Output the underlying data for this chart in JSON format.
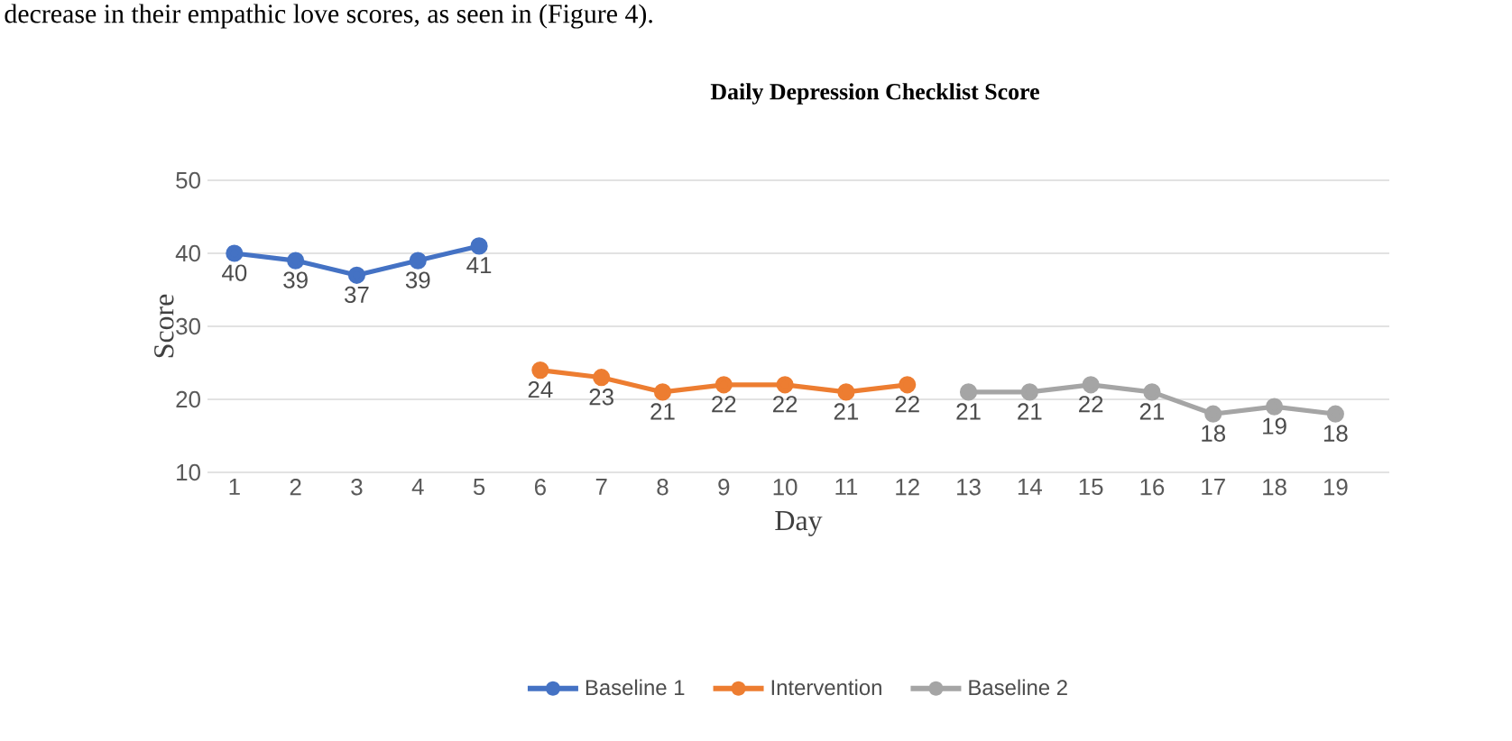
{
  "chart_data": {
    "type": "line",
    "title": "Daily Depression Checklist Score",
    "xlabel": "Day",
    "ylabel": "Score",
    "annotations": [
      "decrease in their empathic love scores, as seen in (Figure 4)."
    ],
    "categories": [
      "1",
      "2",
      "3",
      "4",
      "5",
      "6",
      "7",
      "8",
      "9",
      "10",
      "11",
      "12",
      "13",
      "14",
      "15",
      "16",
      "17",
      "18",
      "19"
    ],
    "series": [
      {
        "name": "Baseline 1",
        "color": "#4472c4",
        "values": [
          40,
          39,
          37,
          39,
          41,
          null,
          null,
          null,
          null,
          null,
          null,
          null,
          null,
          null,
          null,
          null,
          null,
          null,
          null
        ]
      },
      {
        "name": "Intervention",
        "color": "#ed7d31",
        "values": [
          null,
          null,
          null,
          null,
          null,
          24,
          23,
          21,
          22,
          22,
          21,
          22,
          null,
          null,
          null,
          null,
          null,
          null,
          null
        ]
      },
      {
        "name": "Baseline 2",
        "color": "#a5a5a5",
        "values": [
          null,
          null,
          null,
          null,
          null,
          null,
          null,
          null,
          null,
          null,
          null,
          null,
          21,
          21,
          22,
          21,
          18,
          19,
          18
        ]
      }
    ],
    "ylim": [
      10,
      50
    ],
    "yticks": [
      10,
      20,
      30,
      40,
      50
    ],
    "grid": "y",
    "legend": "bottom",
    "marker": "circle",
    "line_style": "solid",
    "data_labels": true
  }
}
